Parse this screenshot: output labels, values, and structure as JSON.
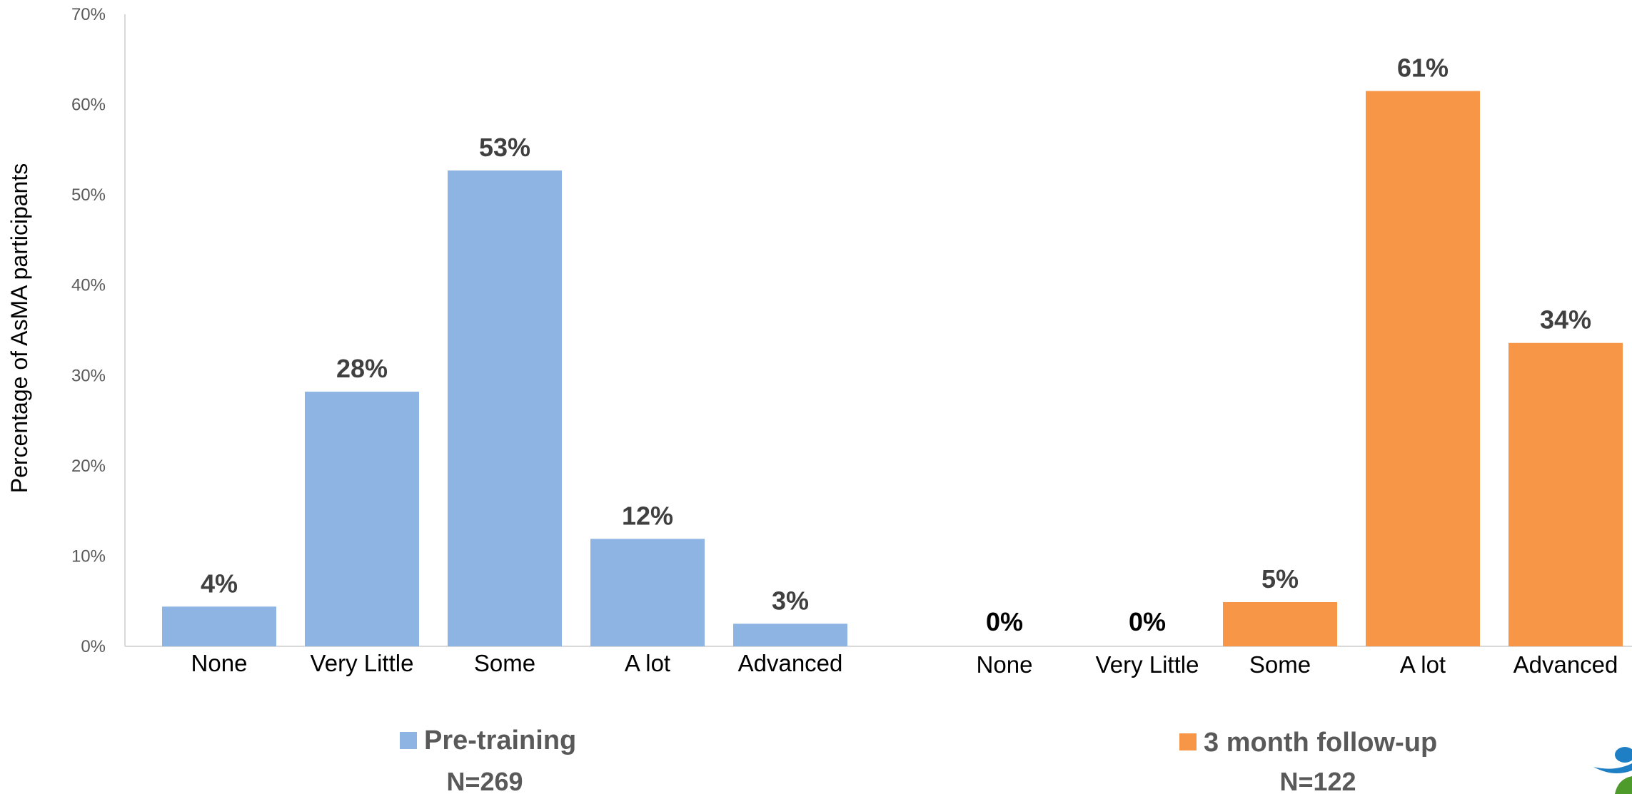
{
  "chart_data": {
    "type": "bar",
    "ylabel": "Percentage of AsMA participants",
    "xlabel": "",
    "ylim": [
      0,
      70
    ],
    "yticks": [
      "0%",
      "10%",
      "20%",
      "30%",
      "40%",
      "50%",
      "60%",
      "70%"
    ],
    "grid": false,
    "groups": [
      {
        "name": "Pre-training",
        "n_label": "N=269",
        "color": "#8EB4E3",
        "categories": [
          "None",
          "Very Little",
          "Some",
          "A lot",
          "Advanced"
        ],
        "values": [
          4.4,
          28.2,
          52.7,
          11.9,
          2.5
        ],
        "data_labels": [
          "4%",
          "28%",
          "53%",
          "12%",
          "3%"
        ]
      },
      {
        "name": "3 month follow-up",
        "n_label": "N=122",
        "color": "#F79646",
        "categories": [
          "None",
          "Very Little",
          "Some",
          "A lot",
          "Advanced"
        ],
        "values": [
          0,
          0,
          4.9,
          61.5,
          33.6
        ],
        "data_labels": [
          "0%",
          "0%",
          "5%",
          "61%",
          "34%"
        ]
      }
    ]
  },
  "colors": {
    "axis": "#D9D9D9",
    "logo_blue": "#1F7FC4",
    "logo_green": "#4E9A2A"
  }
}
